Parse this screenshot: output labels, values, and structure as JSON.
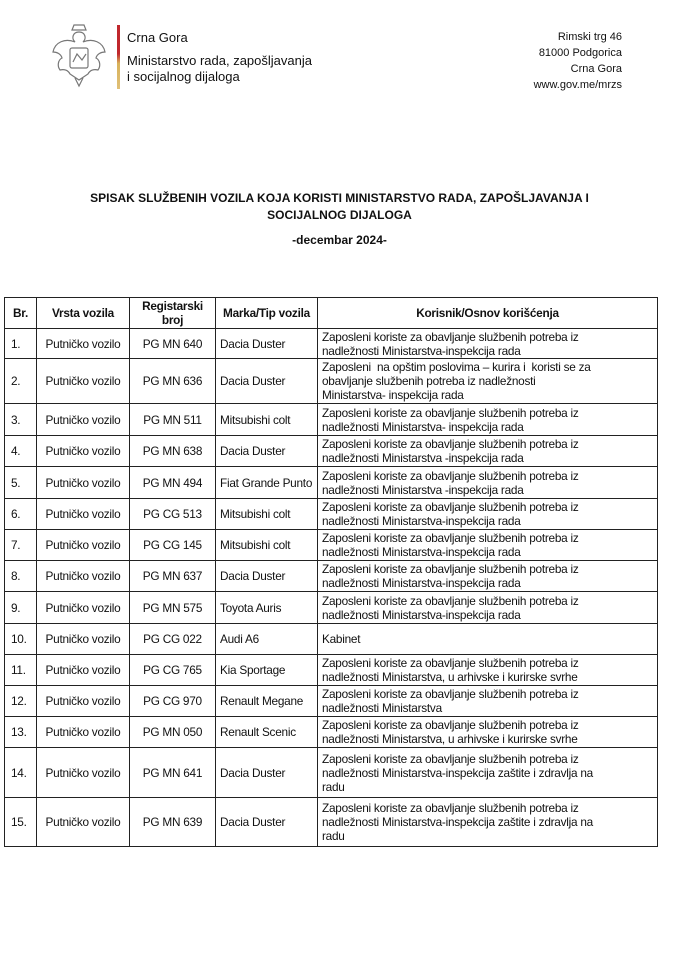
{
  "header": {
    "org_line1": "Crna Gora",
    "org_line2": "Ministarstvo rada, zapošljavanja",
    "org_line3": "i socijalnog dijaloga",
    "address": [
      "Rimski trg 46",
      "81000 Podgorica",
      "Crna Gora",
      "www.gov.me/mrzs"
    ],
    "logo": "montenegro-coat-of-arms"
  },
  "document": {
    "title_line1": "SPISAK SLUŽBENIH VOZILA KOJA KORISTI MINISTARSTVO RADA, ZAPOŠLJAVANJA I",
    "title_line2": "SOCIJALNOG DIJALOGA",
    "subtitle": "-decembar 2024-"
  },
  "table": {
    "columns": [
      "Br.",
      "Vrsta vozila",
      "Registarski broj",
      "Marka/Tip vozila",
      "Korisnik/Osnov korišćenja"
    ],
    "rows": [
      {
        "no": "1.",
        "type": "Putničko vozilo",
        "reg": "PG MN 640",
        "make": "Dacia Duster",
        "use": "Zaposleni koriste za obavljanje službenih potreba iz\nnadležnosti Ministarstva-inspekcija rada"
      },
      {
        "no": "2.",
        "type": "Putničko vozilo",
        "reg": "PG MN 636",
        "make": "Dacia Duster",
        "use": "Zaposleni  na opštim poslovima – kurira i  koristi se za\nobavljanje službenih potreba iz nadležnosti\nMinistarstva- inspekcija rada"
      },
      {
        "no": "3.",
        "type": "Putničko vozilo",
        "reg": "PG MN 511",
        "make": "Mitsubishi colt",
        "use": "Zaposleni koriste za obavljanje službenih potreba iz\nnadležnosti Ministarstva- inspekcija rada"
      },
      {
        "no": "4.",
        "type": "Putničko vozilo",
        "reg": "PG MN 638",
        "make": "Dacia Duster",
        "use": "Zaposleni koriste za obavljanje službenih potreba iz\nnadležnosti Ministarstva -inspekcija rada"
      },
      {
        "no": "5.",
        "type": "Putničko vozilo",
        "reg": "PG MN 494",
        "make": "Fiat Grande Punto",
        "use": "Zaposleni koriste za obavljanje službenih potreba iz\nnadležnosti Ministarstva -inspekcija rada"
      },
      {
        "no": "6.",
        "type": "Putničko vozilo",
        "reg": "PG CG 513",
        "make": "Mitsubishi colt",
        "use": "Zaposleni koriste za obavljanje službenih potreba iz\nnadležnosti Ministarstva-inspekcija rada"
      },
      {
        "no": "7.",
        "type": "Putničko vozilo",
        "reg": "PG CG 145",
        "make": "Mitsubishi colt",
        "use": "Zaposleni koriste za obavljanje službenih potreba iz\nnadležnosti Ministarstva-inspekcija rada"
      },
      {
        "no": "8.",
        "type": "Putničko vozilo",
        "reg": "PG MN 637",
        "make": "Dacia Duster",
        "use": "Zaposleni koriste za obavljanje službenih potreba iz\nnadležnosti Ministarstva-inspekcija rada"
      },
      {
        "no": "9.",
        "type": "Putničko vozilo",
        "reg": "PG MN 575",
        "make": "Toyota Auris",
        "use": "Zaposleni koriste za obavljanje službenih potreba iz\nnadležnosti Ministarstva-inspekcija rada"
      },
      {
        "no": "10.",
        "type": "Putničko vozilo",
        "reg": "PG CG 022",
        "make": "Audi A6",
        "use": "Kabinet"
      },
      {
        "no": "11.",
        "type": "Putničko vozilo",
        "reg": "PG CG 765",
        "make": "Kia Sportage",
        "use": "Zaposleni koriste za obavljanje službenih potreba iz\nnadležnosti Ministarstva, u arhivske i kurirske svrhe"
      },
      {
        "no": "12.",
        "type": "Putničko vozilo",
        "reg": "PG CG 970",
        "make": "Renault Megane",
        "use": "Zaposleni koriste za obavljanje službenih potreba iz\nnadležnosti Ministarstva"
      },
      {
        "no": "13.",
        "type": "Putničko vozilo",
        "reg": "PG MN 050",
        "make": "Renault Scenic",
        "use": "Zaposleni koriste za obavljanje službenih potreba iz\nnadležnosti Ministarstva, u arhivske i kurirske svrhe"
      },
      {
        "no": "14.",
        "type": "Putničko vozilo",
        "reg": "PG MN 641",
        "make": "Dacia Duster",
        "use": "Zaposleni koriste za obavljanje službenih potreba iz\nnadležnosti Ministarstva-inspekcija zaštite i zdravlja na\nradu"
      },
      {
        "no": "15.",
        "type": "Putničko vozilo",
        "reg": "PG MN 639",
        "make": "Dacia Duster",
        "use": "Zaposleni koriste za obavljanje službenih potreba iz\nnadležnosti Ministarstva-inspekcija zaštite i zdravlja na\nradu"
      }
    ]
  }
}
